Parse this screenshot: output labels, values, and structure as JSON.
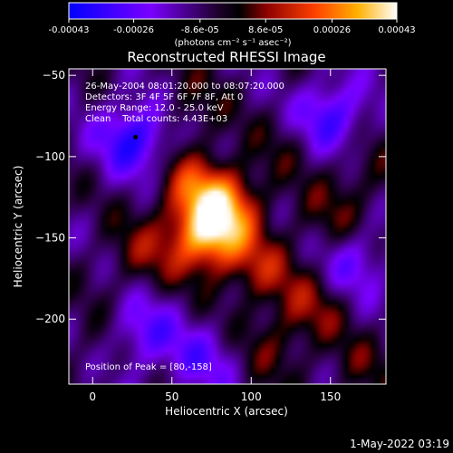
{
  "colorbar": {
    "ticks": [
      -0.00043,
      -0.00026,
      -8.6e-05,
      8.6e-05,
      0.00026,
      0.00043
    ],
    "tick_labels": [
      "-0.00043",
      "-0.00026",
      "-8.6e-05",
      "8.6e-05",
      "0.00026",
      "0.00043"
    ],
    "min": -0.00043,
    "max": 0.00043,
    "unit_label": "(photons cm⁻² s⁻¹ asec⁻²)"
  },
  "chart_data": {
    "type": "heatmap",
    "title": "Reconstructed RHESSI Image",
    "xlabel": "Heliocentric X (arcsec)",
    "ylabel": "Heliocentric Y (arcsec)",
    "xlim": [
      -15,
      185
    ],
    "ylim": [
      -240,
      -46
    ],
    "xticks": [
      0,
      50,
      100,
      150
    ],
    "yticks": [
      -50,
      -100,
      -150,
      -200
    ],
    "xtick_labels": [
      "0",
      "50",
      "100",
      "150"
    ],
    "ytick_labels": [
      "−50",
      "−100",
      "−150",
      "−200"
    ],
    "annotations": [
      "26-May-2004 08:01:20.000 to 08:07:20.000",
      "Detectors: 3F 4F 5F 6F 7F 8F, Att 0",
      "Energy Range: 12.0 - 25.0 keV",
      "Clean    Total counts: 4.43E+03"
    ],
    "peak_label": "Position of Peak = [80,-158]",
    "peak": [
      80,
      -158
    ],
    "sources": [
      {
        "x": 72,
        "y": -148,
        "value": 0.00043
      },
      {
        "x": 85,
        "y": -128,
        "value": 0.00026
      },
      {
        "x": 62,
        "y": -118,
        "value": 0.00018
      },
      {
        "x": 105,
        "y": -170,
        "value": 0.00016
      },
      {
        "x": 30,
        "y": -160,
        "value": 0.00012
      },
      {
        "x": 140,
        "y": -190,
        "value": 0.00013
      },
      {
        "x": 150,
        "y": -140,
        "value": 0.0001
      },
      {
        "x": 115,
        "y": -215,
        "value": 0.00011
      },
      {
        "x": 10,
        "y": -215,
        "value": 8e-05
      },
      {
        "x": 60,
        "y": -70,
        "value": 0.0001
      },
      {
        "x": 125,
        "y": -90,
        "value": 7e-05
      },
      {
        "x": 170,
        "y": -110,
        "value": 9e-05
      },
      {
        "x": 170,
        "y": -230,
        "value": 8e-05
      },
      {
        "x": 27,
        "y": -88,
        "value": -0.0003
      },
      {
        "x": 150,
        "y": -75,
        "value": -0.00026
      },
      {
        "x": 30,
        "y": -210,
        "value": -0.00022
      },
      {
        "x": 165,
        "y": -165,
        "value": -0.00018
      },
      {
        "x": 70,
        "y": -225,
        "value": -0.00015
      }
    ]
  },
  "footer": {
    "date": "1-May-2022 03:19"
  }
}
